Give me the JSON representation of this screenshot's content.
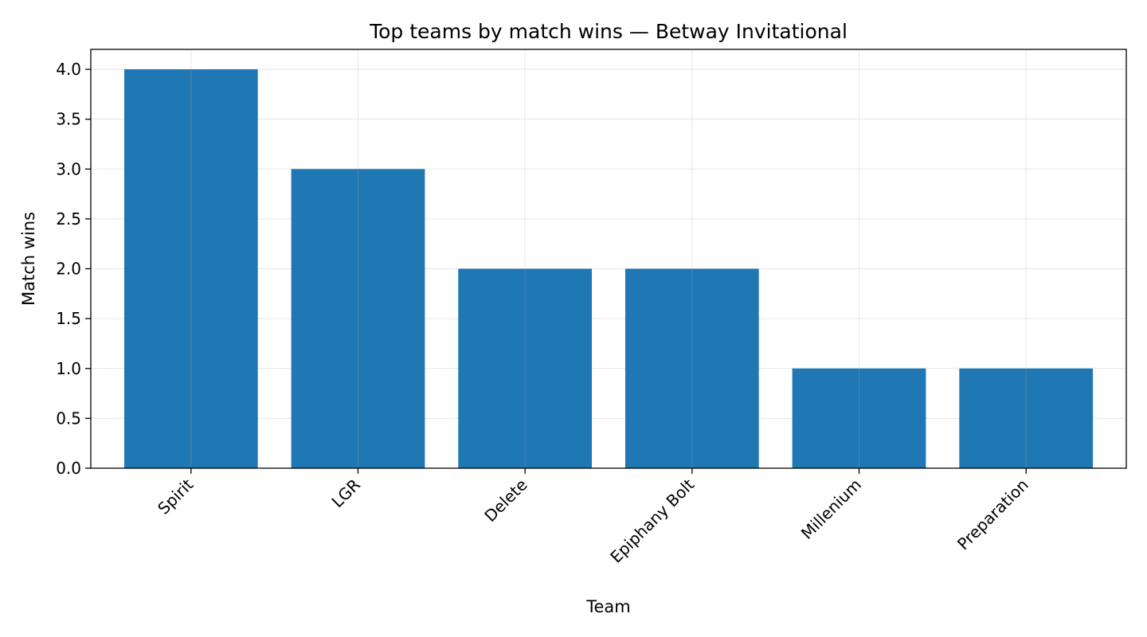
{
  "chart_data": {
    "type": "bar",
    "title": "Top teams by match wins — Betway Invitational",
    "xlabel": "Team",
    "ylabel": "Match wins",
    "categories": [
      "Spirit",
      "LGR",
      "Delete",
      "Epiphany Bolt",
      "Millenium",
      "Preparation"
    ],
    "values": [
      4,
      3,
      2,
      2,
      1,
      1
    ],
    "ylim": [
      0,
      4.2
    ],
    "yticks": [
      {
        "value": 0,
        "label": "0.0"
      },
      {
        "value": 0.5,
        "label": "0.5"
      },
      {
        "value": 1,
        "label": "1.0"
      },
      {
        "value": 1.5,
        "label": "1.5"
      },
      {
        "value": 2,
        "label": "2.0"
      },
      {
        "value": 2.5,
        "label": "2.5"
      },
      {
        "value": 3,
        "label": "3.0"
      },
      {
        "value": 3.5,
        "label": "3.5"
      },
      {
        "value": 4,
        "label": "4.0"
      }
    ],
    "grid": true,
    "legend": "none",
    "bar_color": "#1f77b4"
  }
}
